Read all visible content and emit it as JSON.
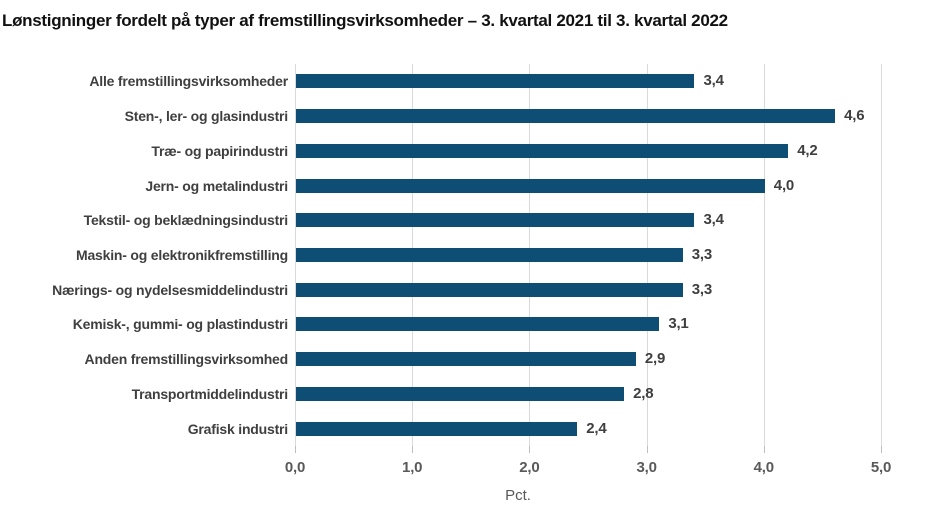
{
  "title": "Lønstigninger fordelt på typer af fremstillingsvirksomheder – 3. kvartal 2021 til 3. kvartal 2022",
  "chart_data": {
    "type": "bar",
    "orientation": "horizontal",
    "title": "Lønstigninger fordelt på typer af fremstillingsvirksomheder – 3. kvartal 2021 til 3. kvartal 2022",
    "categories": [
      "Alle fremstillingsvirksomheder",
      "Sten-, ler- og glasindustri",
      "Træ- og papirindustri",
      "Jern- og metalindustri",
      "Tekstil- og beklædningsindustri",
      "Maskin- og elektronikfremstilling",
      "Nærings- og nydelsesmiddelindustri",
      "Kemisk-, gummi- og plastindustri",
      "Anden fremstillingsvirksomhed",
      "Transportmiddelindustri",
      "Grafisk industri"
    ],
    "values": [
      3.4,
      4.6,
      4.2,
      4.0,
      3.4,
      3.3,
      3.3,
      3.1,
      2.9,
      2.8,
      2.4
    ],
    "value_labels": [
      "3,4",
      "4,6",
      "4,2",
      "4,0",
      "3,4",
      "3,3",
      "3,3",
      "3,1",
      "2,9",
      "2,8",
      "2,4"
    ],
    "xlabel": "Pct.",
    "x_ticks": [
      "0,0",
      "1,0",
      "2,0",
      "3,0",
      "4,0",
      "5,0"
    ],
    "xlim": [
      0,
      5
    ],
    "grid": "vertical-gridlines-on",
    "legend": "none",
    "colors": {
      "bar": "#0e4d74",
      "gridline": "#d9d9d9",
      "tick_stub": "#bfbfbf",
      "category_label": "#3f3f3f",
      "value_label": "#3f3f3f",
      "tick_label": "#595959",
      "title": "#111111"
    }
  }
}
